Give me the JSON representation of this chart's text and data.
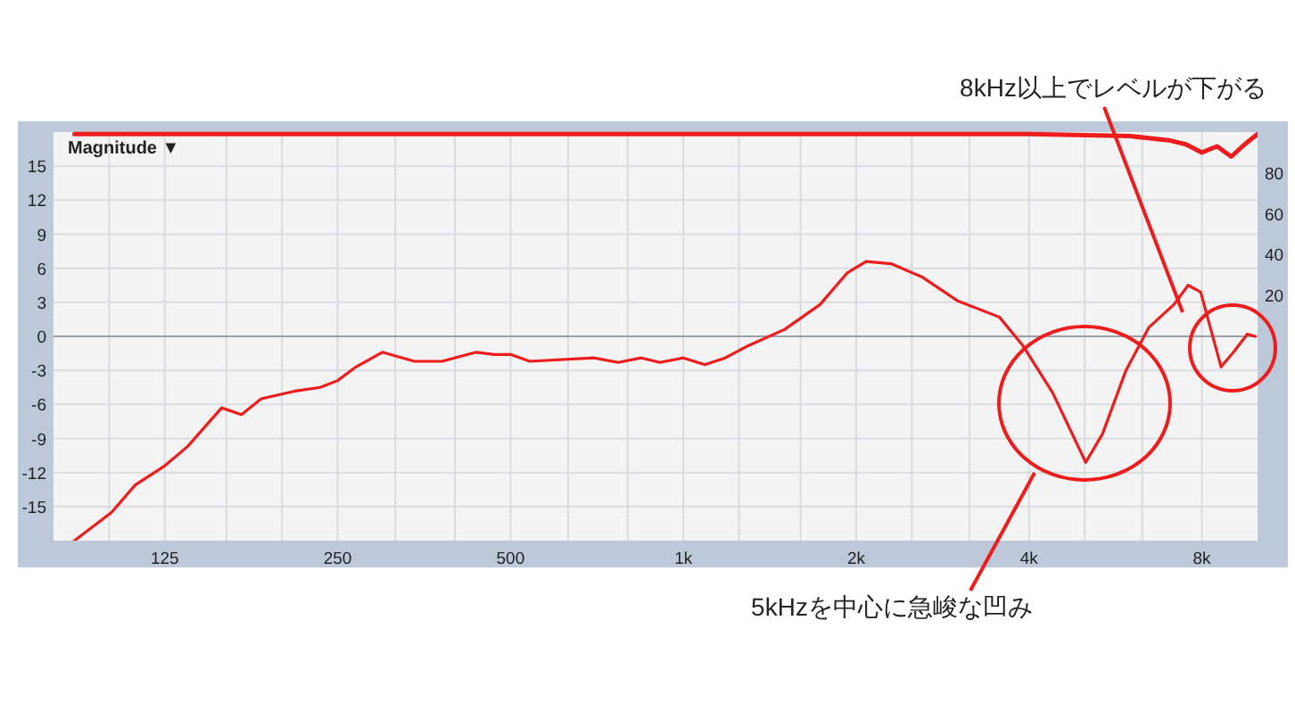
{
  "chart_data": {
    "type": "line",
    "ylabel": "Magnitude ▼",
    "log": "x",
    "grid": true,
    "xlim": [
      80,
      10000
    ],
    "ylim": [
      -18,
      18
    ],
    "y2lim": [
      -100,
      100
    ],
    "xticks": [
      {
        "value": 100,
        "label": null
      },
      {
        "value": 125,
        "label": "125"
      },
      {
        "value": 160,
        "label": null
      },
      {
        "value": 200,
        "label": null
      },
      {
        "value": 250,
        "label": "250"
      },
      {
        "value": 315,
        "label": null
      },
      {
        "value": 400,
        "label": null
      },
      {
        "value": 500,
        "label": "500"
      },
      {
        "value": 630,
        "label": null
      },
      {
        "value": 800,
        "label": null
      },
      {
        "value": 1000,
        "label": "1k"
      },
      {
        "value": 1250,
        "label": null
      },
      {
        "value": 1600,
        "label": null
      },
      {
        "value": 2000,
        "label": "2k"
      },
      {
        "value": 2500,
        "label": null
      },
      {
        "value": 3150,
        "label": null
      },
      {
        "value": 4000,
        "label": "4k"
      },
      {
        "value": 5000,
        "label": null
      },
      {
        "value": 6300,
        "label": null
      },
      {
        "value": 8000,
        "label": "8k"
      }
    ],
    "yticks": [
      -15,
      -12,
      -9,
      -6,
      -3,
      0,
      3,
      6,
      9,
      12,
      15
    ],
    "y2ticks": [
      20,
      40,
      60,
      80
    ],
    "x": [
      87,
      101,
      111,
      125,
      137,
      157,
      170,
      184,
      212,
      233,
      250,
      269,
      299,
      340,
      380,
      436,
      468,
      500,
      540,
      698,
      770,
      845,
      910,
      1000,
      1090,
      1183,
      1300,
      1500,
      1730,
      1930,
      2080,
      2300,
      2610,
      3010,
      3550,
      3900,
      4400,
      5020,
      5370,
      5900,
      6470,
      7150,
      7570,
      7960,
      8640,
      9080,
      9600,
      9900
    ],
    "series": [
      {
        "color": "#ee1c1c",
        "values": [
          -18,
          -15.5,
          -13.1,
          -11.4,
          -9.7,
          -6.3,
          -6.9,
          -5.5,
          -4.8,
          -4.5,
          -3.9,
          -2.7,
          -1.4,
          -2.2,
          -2.2,
          -1.4,
          -1.6,
          -1.6,
          -2.2,
          -1.9,
          -2.3,
          -1.9,
          -2.3,
          -1.9,
          -2.5,
          -1.9,
          -0.8,
          0.6,
          2.8,
          5.6,
          6.6,
          6.4,
          5.2,
          3.1,
          1.7,
          -0.8,
          -5,
          -11.1,
          -8.6,
          -3,
          0.8,
          2.8,
          4.5,
          3.9,
          -2.7,
          -1.4,
          0.2,
          0
        ]
      },
      {
        "color": "#ee1c1c",
        "axis": "y2",
        "x": [
          87,
          200,
          500,
          1000,
          2000,
          4000,
          6000,
          7000,
          7500,
          8000,
          8500,
          9000,
          9500,
          10000
        ],
        "values": [
          99,
          99,
          99,
          99,
          99,
          99,
          98,
          96,
          94,
          90,
          93,
          88,
          94,
          99
        ]
      }
    ],
    "annotations": [
      "8kHz以上でレベルが下がる",
      "5kHzを中心に急峻な凹み"
    ]
  }
}
